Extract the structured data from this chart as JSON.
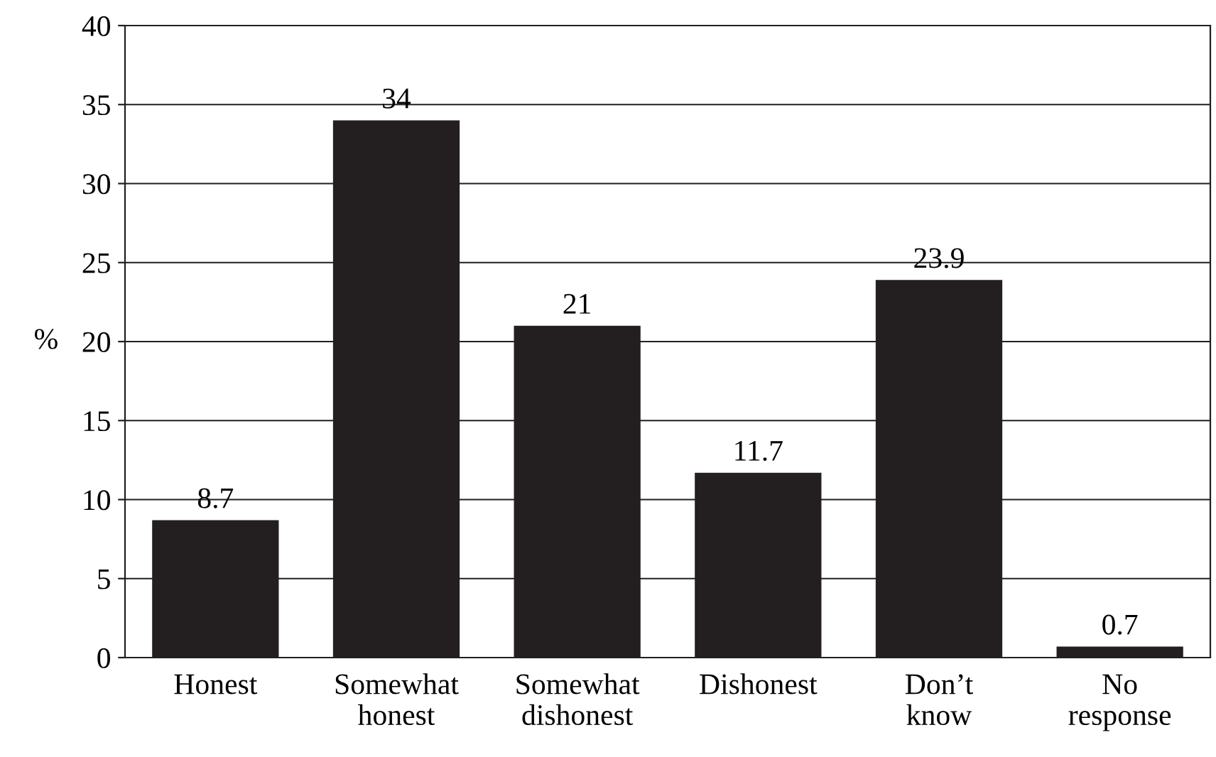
{
  "chart_data": {
    "type": "bar",
    "ylabel": "%",
    "categories": [
      "Honest",
      "Somewhat\nhonest",
      "Somewhat\ndishonest",
      "Dishonest",
      "Don’t\nknow",
      "No\nresponse"
    ],
    "values": [
      8.7,
      34,
      21,
      11.7,
      23.9,
      0.7
    ],
    "color": "#231f20",
    "ylim": [
      0,
      40
    ],
    "yticks": [
      0,
      5,
      10,
      15,
      20,
      25,
      30,
      35,
      40
    ],
    "grid": "y",
    "data_labels": true
  }
}
